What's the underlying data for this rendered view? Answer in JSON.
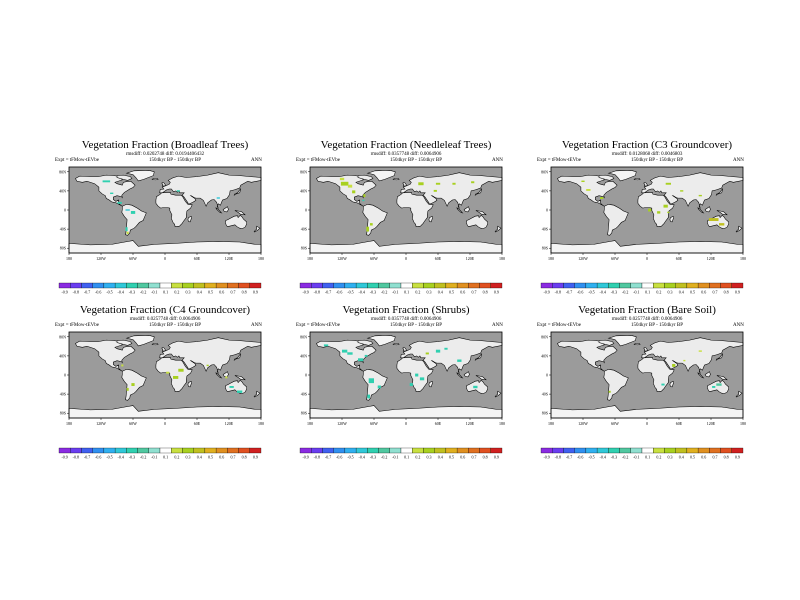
{
  "panels": [
    {
      "title": "Vegetation Fraction (Broadleaf Trees)",
      "stats": "rmsdiff: 0.0202748 diff: 0.0194406432",
      "expt": "Expt = tFMow-tEVbe",
      "years": "1504kyr BP - 1504kyr BP",
      "period": "ANN"
    },
    {
      "title": "Vegetation Fraction (Needleleaf Trees)",
      "stats": "rmsdiff: 0.0357748 diff: 0.0064906",
      "expt": "Expt = tFMow-tEVbe",
      "years": "1504kyr BP - 1504kyr BP",
      "period": "ANN"
    },
    {
      "title": "Vegetation Fraction (C3 Groundcover)",
      "stats": "rmsdiff: 0.0128068 diff: 0.0046803",
      "expt": "Expt = tFMow-tEVbe",
      "years": "1504kyr BP - 1504kyr BP",
      "period": "ANN"
    },
    {
      "title": "Vegetation Fraction (C4 Groundcover)",
      "stats": "rmsdiff: 0.0257748 diff: 0.0064906",
      "expt": "Expt = tFMow-tEVbe",
      "years": "1504kyr BP - 1504kyr BP",
      "period": "ANN"
    },
    {
      "title": "Vegetation Fraction (Shrubs)",
      "stats": "rmsdiff: 0.0357748 diff: 0.0064906",
      "expt": "Expt = tFMow-tEVbe",
      "years": "1504kyr BP - 1504kyr BP",
      "period": "ANN"
    },
    {
      "title": "Vegetation Fraction (Bare Soil)",
      "stats": "rmsdiff: 0.0257748 diff: 0.0064906",
      "expt": "Expt = tFMow-tEVbe",
      "years": "1504kyr BP - 1504kyr BP",
      "period": "ANN"
    }
  ],
  "axes": {
    "lat_labels": [
      "80N",
      "40N",
      "0",
      "40S",
      "80S"
    ],
    "lon_labels": [
      "180",
      "120W",
      "60W",
      "0",
      "60E",
      "120E",
      "180"
    ]
  },
  "colorbar": {
    "labels": [
      "-0.9",
      "-0.8",
      "-0.7",
      "-0.6",
      "-0.5",
      "-0.4",
      "-0.3",
      "-0.2",
      "-0.1",
      "0.1",
      "0.2",
      "0.3",
      "0.4",
      "0.5",
      "0.6",
      "0.7",
      "0.8",
      "0.9"
    ],
    "colors": [
      "#8a2be2",
      "#6a3df0",
      "#4060f0",
      "#3090f0",
      "#30b0f0",
      "#30c8d8",
      "#30d0b0",
      "#50c8a0",
      "#90e0d0",
      "#ffffff",
      "#c8e040",
      "#a8d020",
      "#c0c020",
      "#e0b020",
      "#e09020",
      "#e07020",
      "#e05020",
      "#d02020"
    ]
  },
  "colors": {
    "ocean": "#9b9b9b",
    "land": "#ececec",
    "ice": "#f4f4f4",
    "coast": "#000000"
  }
}
